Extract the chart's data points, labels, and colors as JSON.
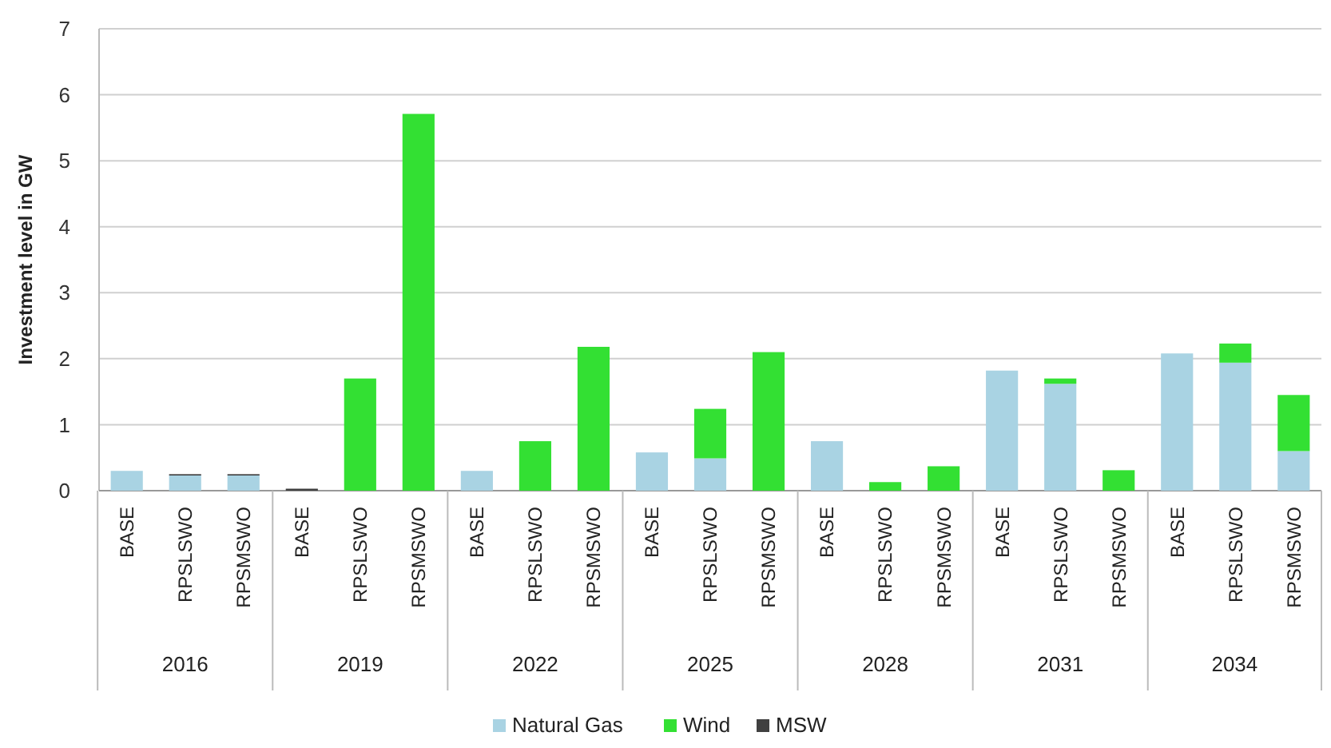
{
  "chart_data": {
    "type": "bar",
    "stacked": true,
    "ylabel": "Investment level in GW",
    "categories": [
      "BASE",
      "RPSLSWO",
      "RPSMSWO",
      "BASE",
      "RPSLSWO",
      "RPSMSWO",
      "BASE",
      "RPSLSWO",
      "RPSMSWO",
      "BASE",
      "RPSLSWO",
      "RPSMSWO",
      "BASE",
      "RPSLSWO",
      "RPSMSWO",
      "BASE",
      "RPSLSWO",
      "RPSMSWO",
      "BASE",
      "RPSLSWO",
      "RPSMSWO"
    ],
    "annotations": [
      "2016",
      "2019",
      "2022",
      "2025",
      "2028",
      "2031",
      "2034"
    ],
    "series": [
      {
        "name": "Natural Gas",
        "color": "#a9d3e3",
        "values": [
          0.3,
          0.23,
          0.23,
          0,
          0,
          0,
          0.3,
          0,
          0,
          0.58,
          0.49,
          0,
          0.75,
          0,
          0,
          1.82,
          1.62,
          0,
          2.08,
          1.94,
          0.6
        ]
      },
      {
        "name": "Wind",
        "color": "#33e033",
        "values": [
          0,
          0,
          0,
          0,
          1.7,
          5.71,
          0,
          0.75,
          2.18,
          0,
          0.75,
          2.1,
          0,
          0.13,
          0.37,
          0,
          0.08,
          0.31,
          0,
          0.29,
          0.85
        ]
      },
      {
        "name": "MSW",
        "color": "#404040",
        "values": [
          0,
          0.02,
          0.02,
          0.03,
          0,
          0,
          0,
          0,
          0,
          0,
          0,
          0,
          0,
          0,
          0,
          0,
          0,
          0,
          0,
          0,
          0
        ]
      }
    ],
    "ylim": [
      0,
      7
    ],
    "yticks": [
      0,
      1,
      2,
      3,
      4,
      5,
      6,
      7
    ],
    "grid": "y",
    "legend": "bottom"
  }
}
